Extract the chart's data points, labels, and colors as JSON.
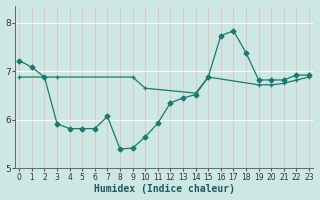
{
  "line1_x": [
    0,
    1,
    2,
    3,
    4,
    5,
    6,
    7,
    8,
    9,
    10,
    11,
    12,
    13,
    14,
    15,
    16,
    17,
    18,
    19,
    20,
    21,
    22,
    23
  ],
  "line1_y": [
    7.22,
    7.08,
    6.88,
    5.92,
    5.82,
    5.82,
    5.82,
    6.07,
    5.4,
    5.42,
    5.65,
    5.93,
    6.35,
    6.45,
    6.52,
    6.88,
    7.73,
    7.83,
    7.38,
    6.82,
    6.82,
    6.82,
    6.92,
    6.92
  ],
  "line2_x": [
    0,
    2,
    3,
    9,
    10,
    14,
    15,
    19,
    20,
    21,
    22,
    23
  ],
  "line2_y": [
    6.88,
    6.88,
    6.88,
    6.88,
    6.65,
    6.55,
    6.88,
    6.72,
    6.72,
    6.75,
    6.82,
    6.88
  ],
  "line_color": "#1a7a6e",
  "bg_color": "#cde8e4",
  "grid_major_color": "#ffffff",
  "grid_minor_color": "#e8c8c8",
  "xlabel": "Humidex (Indice chaleur)",
  "ylim": [
    5.0,
    8.35
  ],
  "xlim": [
    -0.3,
    23.3
  ],
  "yticks": [
    5,
    6,
    7,
    8
  ],
  "xticks": [
    0,
    1,
    2,
    3,
    4,
    5,
    6,
    7,
    8,
    9,
    10,
    11,
    12,
    13,
    14,
    15,
    16,
    17,
    18,
    19,
    20,
    21,
    22,
    23
  ],
  "figsize": [
    3.2,
    2.0
  ],
  "dpi": 100
}
